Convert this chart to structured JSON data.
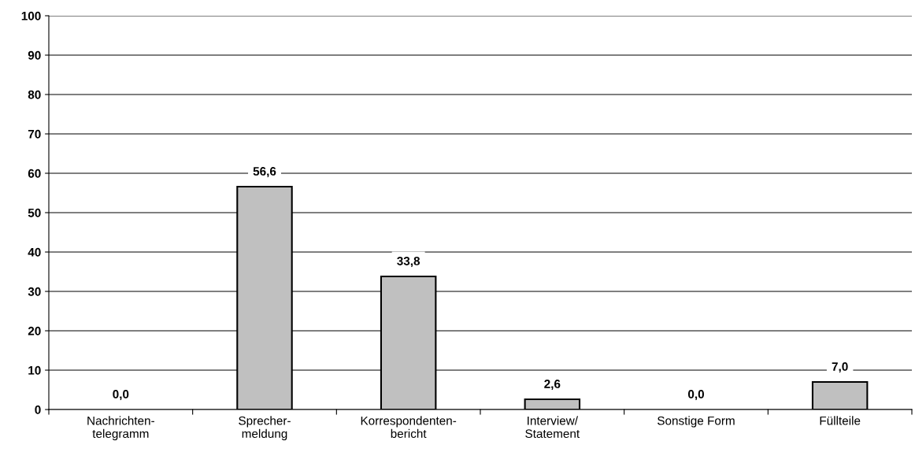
{
  "chart_data": {
    "type": "bar",
    "categories": [
      "Nachrichten-\ntelegramm",
      "Sprecher-\nmeldung",
      "Korrespondenten-\nbericht",
      "Interview/\nStatement",
      "Sonstige Form",
      "Füllteile"
    ],
    "values": [
      0.0,
      56.6,
      33.8,
      2.6,
      0.0,
      7.0
    ],
    "value_labels": [
      "0,0",
      "56,6",
      "33,8",
      "2,6",
      "0,0",
      "7,0"
    ],
    "color": "#c0c0c0",
    "ylim": [
      0,
      100
    ],
    "yticks": [
      0,
      10,
      20,
      30,
      40,
      50,
      60,
      70,
      80,
      90,
      100
    ],
    "grid": "y",
    "legend": false
  }
}
